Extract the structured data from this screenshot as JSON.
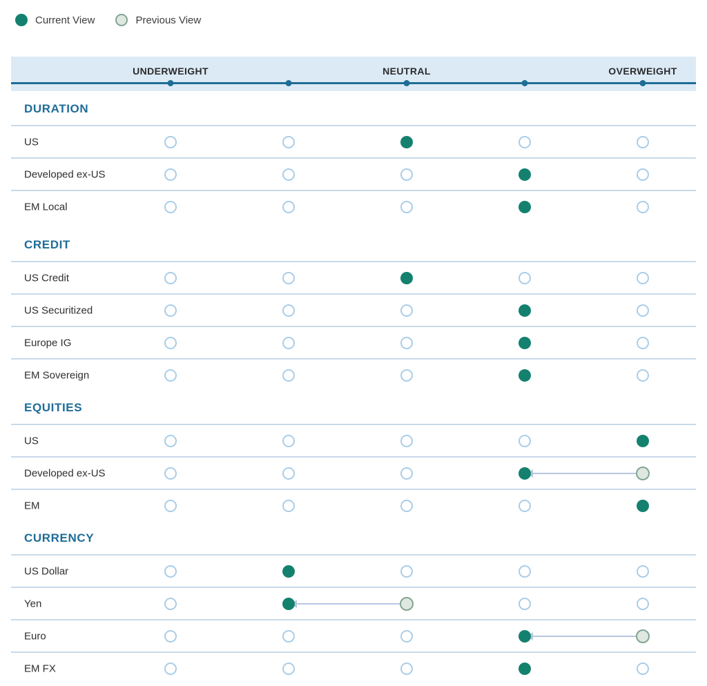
{
  "legend": {
    "current_label": "Current View",
    "previous_label": "Previous View"
  },
  "header": {
    "labels": [
      "UNDERWEIGHT",
      "NEUTRAL",
      "OVERWEIGHT"
    ]
  },
  "colors": {
    "current": "#14816F",
    "previous_fill": "#DEE8E1",
    "previous_border": "#83A493",
    "open_border": "#A9CDE8",
    "header_bg": "#DCEAF6",
    "axis": "#1E6C97",
    "section_title": "#1E6C97",
    "separator": "#C7D9EA",
    "arrow": "#B7C7DF"
  },
  "chart_data": {
    "type": "table",
    "scale": {
      "positions": 5,
      "tick_labels": [
        "UNDERWEIGHT",
        "NEUTRAL",
        "OVERWEIGHT"
      ],
      "tick_label_positions": [
        1,
        3,
        5
      ],
      "column_centers_pct": [
        23.29,
        40.52,
        57.76,
        75.0,
        92.24
      ]
    },
    "legend_entries": [
      "Current View",
      "Previous View"
    ],
    "sections": [
      {
        "title": "DURATION",
        "rows": [
          {
            "label": "US",
            "current": 3,
            "previous": null
          },
          {
            "label": "Developed ex-US",
            "current": 4,
            "previous": null
          },
          {
            "label": "EM Local",
            "current": 4,
            "previous": null
          }
        ]
      },
      {
        "title": "CREDIT",
        "rows": [
          {
            "label": "US Credit",
            "current": 3,
            "previous": null
          },
          {
            "label": "US Securitized",
            "current": 4,
            "previous": null
          },
          {
            "label": "Europe IG",
            "current": 4,
            "previous": null
          },
          {
            "label": "EM Sovereign",
            "current": 4,
            "previous": null
          }
        ]
      },
      {
        "title": "EQUITIES",
        "rows": [
          {
            "label": "US",
            "current": 5,
            "previous": null
          },
          {
            "label": "Developed ex-US",
            "current": 4,
            "previous": 5
          },
          {
            "label": "EM",
            "current": 5,
            "previous": null
          }
        ]
      },
      {
        "title": "CURRENCY",
        "rows": [
          {
            "label": "US Dollar",
            "current": 2,
            "previous": null
          },
          {
            "label": "Yen",
            "current": 2,
            "previous": 3
          },
          {
            "label": "Euro",
            "current": 4,
            "previous": 5
          },
          {
            "label": "EM FX",
            "current": 4,
            "previous": null
          }
        ]
      }
    ]
  }
}
